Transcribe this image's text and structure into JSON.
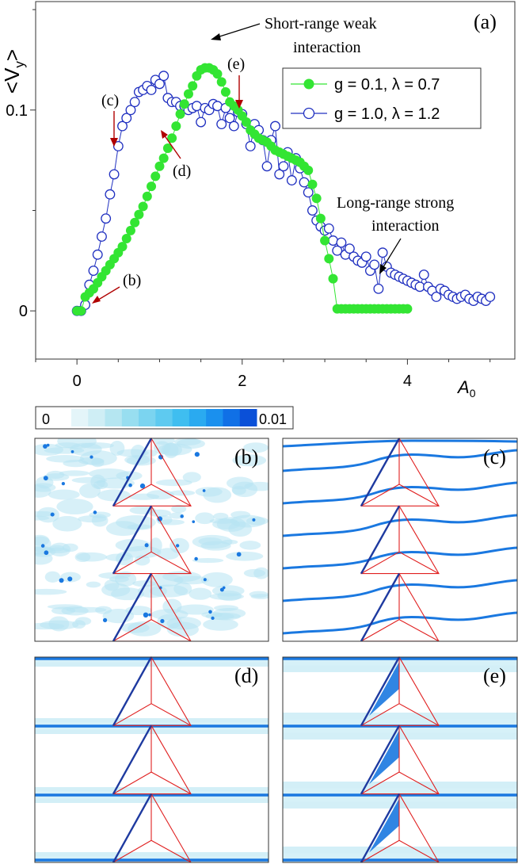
{
  "chart_data": [
    {
      "panel": "(a)",
      "type": "scatter",
      "ylabel": "<V_y>",
      "xlabel": "A_0",
      "xlim": [
        -0.5,
        5.3
      ],
      "ylim": [
        -0.024,
        0.154
      ],
      "xticks": [
        0,
        2,
        4
      ],
      "xtick_labels": [
        "0",
        "2",
        "4"
      ],
      "yticks": [
        0,
        0.1
      ],
      "ytick_labels": [
        "0",
        "0.1"
      ],
      "grid": false,
      "legend_position": "top-right",
      "series": [
        {
          "name": "g = 0.1, λ = 0.7",
          "marker": "filled-circle",
          "color": "#33e533",
          "x": [
            0,
            0.05,
            0.1,
            0.15,
            0.2,
            0.25,
            0.3,
            0.35,
            0.4,
            0.45,
            0.5,
            0.55,
            0.6,
            0.65,
            0.7,
            0.75,
            0.8,
            0.85,
            0.9,
            0.95,
            1.0,
            1.05,
            1.1,
            1.15,
            1.2,
            1.25,
            1.3,
            1.35,
            1.4,
            1.45,
            1.5,
            1.55,
            1.6,
            1.65,
            1.7,
            1.75,
            1.8,
            1.85,
            1.9,
            1.95,
            2.0,
            2.05,
            2.1,
            2.15,
            2.2,
            2.25,
            2.3,
            2.35,
            2.4,
            2.45,
            2.5,
            2.55,
            2.6,
            2.65,
            2.7,
            2.75,
            2.8,
            2.85,
            2.9,
            2.95,
            3.0,
            3.05,
            3.1,
            3.15,
            3.2,
            3.25,
            3.3,
            3.35,
            3.4,
            3.45,
            3.5,
            3.55,
            3.6,
            3.65,
            3.7,
            3.75,
            3.8,
            3.85,
            3.9,
            3.95,
            4.0
          ],
          "y": [
            0,
            0,
            0.007,
            0.009,
            0.011,
            0.014,
            0.017,
            0.02,
            0.023,
            0.026,
            0.029,
            0.032,
            0.036,
            0.04,
            0.044,
            0.048,
            0.052,
            0.057,
            0.062,
            0.067,
            0.072,
            0.076,
            0.081,
            0.086,
            0.092,
            0.098,
            0.103,
            0.108,
            0.112,
            0.117,
            0.12,
            0.121,
            0.121,
            0.12,
            0.118,
            0.114,
            0.109,
            0.104,
            0.102,
            0.1,
            0.097,
            0.094,
            0.09,
            0.088,
            0.086,
            0.085,
            0.084,
            0.082,
            0.08,
            0.079,
            0.078,
            0.077,
            0.076,
            0.075,
            0.074,
            0.072,
            0.07,
            0.063,
            0.056,
            0.046,
            0.035,
            0.026,
            0.016,
            0.001,
            0.001,
            0.001,
            0.001,
            0.001,
            0.001,
            0.001,
            0.001,
            0.001,
            0.001,
            0.001,
            0.001,
            0.001,
            0.001,
            0.001,
            0.001,
            0.001,
            0.001
          ]
        },
        {
          "name": "g = 1.0, λ = 1.2",
          "marker": "open-circle",
          "color": "#2030c0",
          "x": [
            0,
            0.05,
            0.1,
            0.15,
            0.2,
            0.25,
            0.3,
            0.35,
            0.4,
            0.45,
            0.5,
            0.55,
            0.6,
            0.65,
            0.7,
            0.75,
            0.8,
            0.85,
            0.9,
            0.95,
            1.0,
            1.05,
            1.1,
            1.15,
            1.2,
            1.25,
            1.3,
            1.35,
            1.4,
            1.45,
            1.5,
            1.55,
            1.6,
            1.65,
            1.7,
            1.75,
            1.8,
            1.85,
            1.9,
            1.95,
            2.0,
            2.05,
            2.1,
            2.15,
            2.2,
            2.25,
            2.3,
            2.35,
            2.4,
            2.45,
            2.5,
            2.55,
            2.6,
            2.65,
            2.7,
            2.75,
            2.8,
            2.85,
            2.9,
            2.95,
            3.0,
            3.05,
            3.1,
            3.15,
            3.2,
            3.25,
            3.3,
            3.35,
            3.4,
            3.45,
            3.5,
            3.55,
            3.6,
            3.65,
            3.7,
            3.75,
            3.8,
            3.85,
            3.9,
            3.95,
            4.0,
            4.05,
            4.1,
            4.15,
            4.2,
            4.25,
            4.3,
            4.35,
            4.4,
            4.45,
            4.5,
            4.55,
            4.6,
            4.65,
            4.7,
            4.75,
            4.8,
            4.85,
            4.9,
            4.95,
            5.0
          ],
          "y": [
            0,
            0,
            0.003,
            0.013,
            0.02,
            0.028,
            0.037,
            0.046,
            0.058,
            0.068,
            0.082,
            0.092,
            0.096,
            0.1,
            0.104,
            0.109,
            0.11,
            0.112,
            0.11,
            0.115,
            0.113,
            0.117,
            0.106,
            0.104,
            0.104,
            0.102,
            0.102,
            0.1,
            0.101,
            0.102,
            0.094,
            0.101,
            0.1,
            0.103,
            0.102,
            0.093,
            0.101,
            0.096,
            0.092,
            0.099,
            0.098,
            0.093,
            0.082,
            0.093,
            0.09,
            0.085,
            0.072,
            0.085,
            0.092,
            0.068,
            0.072,
            0.079,
            0.065,
            0.076,
            0.071,
            0.064,
            0.059,
            0.05,
            0.045,
            0.042,
            0.04,
            0.041,
            0.035,
            0.03,
            0.034,
            0.028,
            0.031,
            0.027,
            0.025,
            0.024,
            0.027,
            0.02,
            0.023,
            0.011,
            0.029,
            0.022,
            0.019,
            0.018,
            0.017,
            0.016,
            0.015,
            0.014,
            0.013,
            0.012,
            0.018,
            0.012,
            0.01,
            0.007,
            0.011,
            0.01,
            0.008,
            0.007,
            0.006,
            0.007,
            0.008,
            0.006,
            0.005,
            0.007,
            0.006,
            0.005,
            0.007
          ]
        }
      ],
      "annotations": [
        {
          "text": "Short-range weak",
          "text2": "interaction"
        },
        {
          "text": "Long-range strong",
          "text2": "interaction"
        },
        {
          "text": "(b)"
        },
        {
          "text": "(c)"
        },
        {
          "text": "(d)"
        },
        {
          "text": "(e)"
        }
      ]
    },
    {
      "type": "heatmap",
      "colorbar": {
        "min_label": "0",
        "max_label": "0.01",
        "colors": [
          "#e4f5f9",
          "#cfeef5",
          "#b5e6f1",
          "#98def0",
          "#7bd4f0",
          "#5ecaf0",
          "#3fbef0",
          "#2aaaf0",
          "#1a90ee",
          "#1070e6",
          "#0a50d8"
        ]
      },
      "panels": [
        "(b)",
        "(c)",
        "(d)",
        "(e)"
      ]
    }
  ],
  "panel_a_label": "(a)",
  "ylabel_text": "<V",
  "ylabel_sub": "y",
  "ylabel_close": ">",
  "xlabel_text": "A",
  "xlabel_sub": "0",
  "colors": {
    "green": "#33e533",
    "blue": "#2030c0",
    "arrow_red": "#b00000",
    "triangle": "#e02020",
    "triangle_edge": "#1e3aa0",
    "flow": "#1a78e0",
    "flow_light": "#b6e4f2",
    "frame": "#333333"
  }
}
